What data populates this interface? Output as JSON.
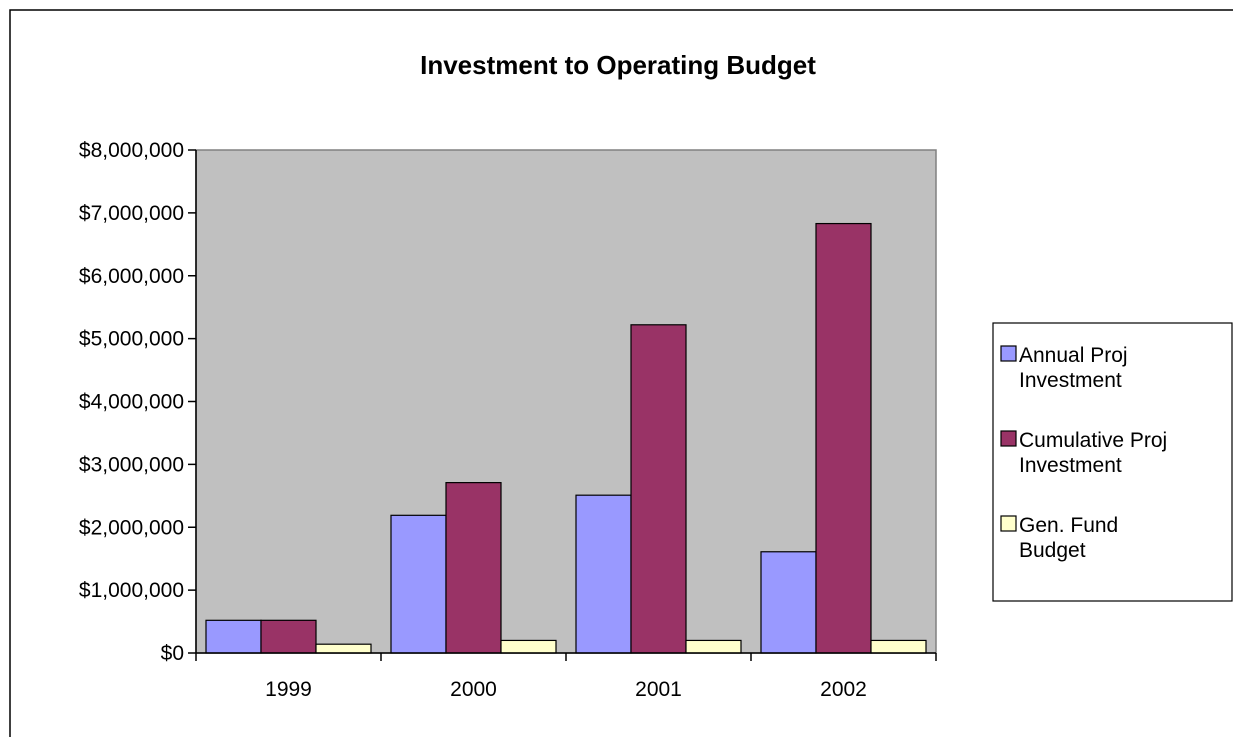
{
  "chart_data": {
    "type": "bar",
    "title": "Investment to Operating Budget",
    "categories": [
      "1999",
      "2000",
      "2001",
      "2002"
    ],
    "series": [
      {
        "name": "Annual Proj Investment",
        "name_lines": [
          "Annual Proj",
          "Investment"
        ],
        "color": "#9999FF",
        "values": [
          520000,
          2190000,
          2510000,
          1610000
        ]
      },
      {
        "name": "Cumulative Proj Investment",
        "name_lines": [
          "Cumulative Proj",
          "Investment"
        ],
        "color": "#993366",
        "values": [
          520000,
          2710000,
          5220000,
          6830000
        ]
      },
      {
        "name": "Gen. Fund Budget",
        "name_lines": [
          "Gen. Fund",
          "Budget"
        ],
        "color": "#FFFFCC",
        "values": [
          140000,
          200000,
          200000,
          200000
        ]
      }
    ],
    "ylim": [
      0,
      8000000
    ],
    "yticks": [
      0,
      1000000,
      2000000,
      3000000,
      4000000,
      5000000,
      6000000,
      7000000,
      8000000
    ],
    "ytick_labels": [
      "$0",
      "$1,000,000",
      "$2,000,000",
      "$3,000,000",
      "$4,000,000",
      "$5,000,000",
      "$6,000,000",
      "$7,000,000",
      "$8,000,000"
    ],
    "plot_background": "#C0C0C0",
    "grid": false,
    "legend_position": "right"
  }
}
